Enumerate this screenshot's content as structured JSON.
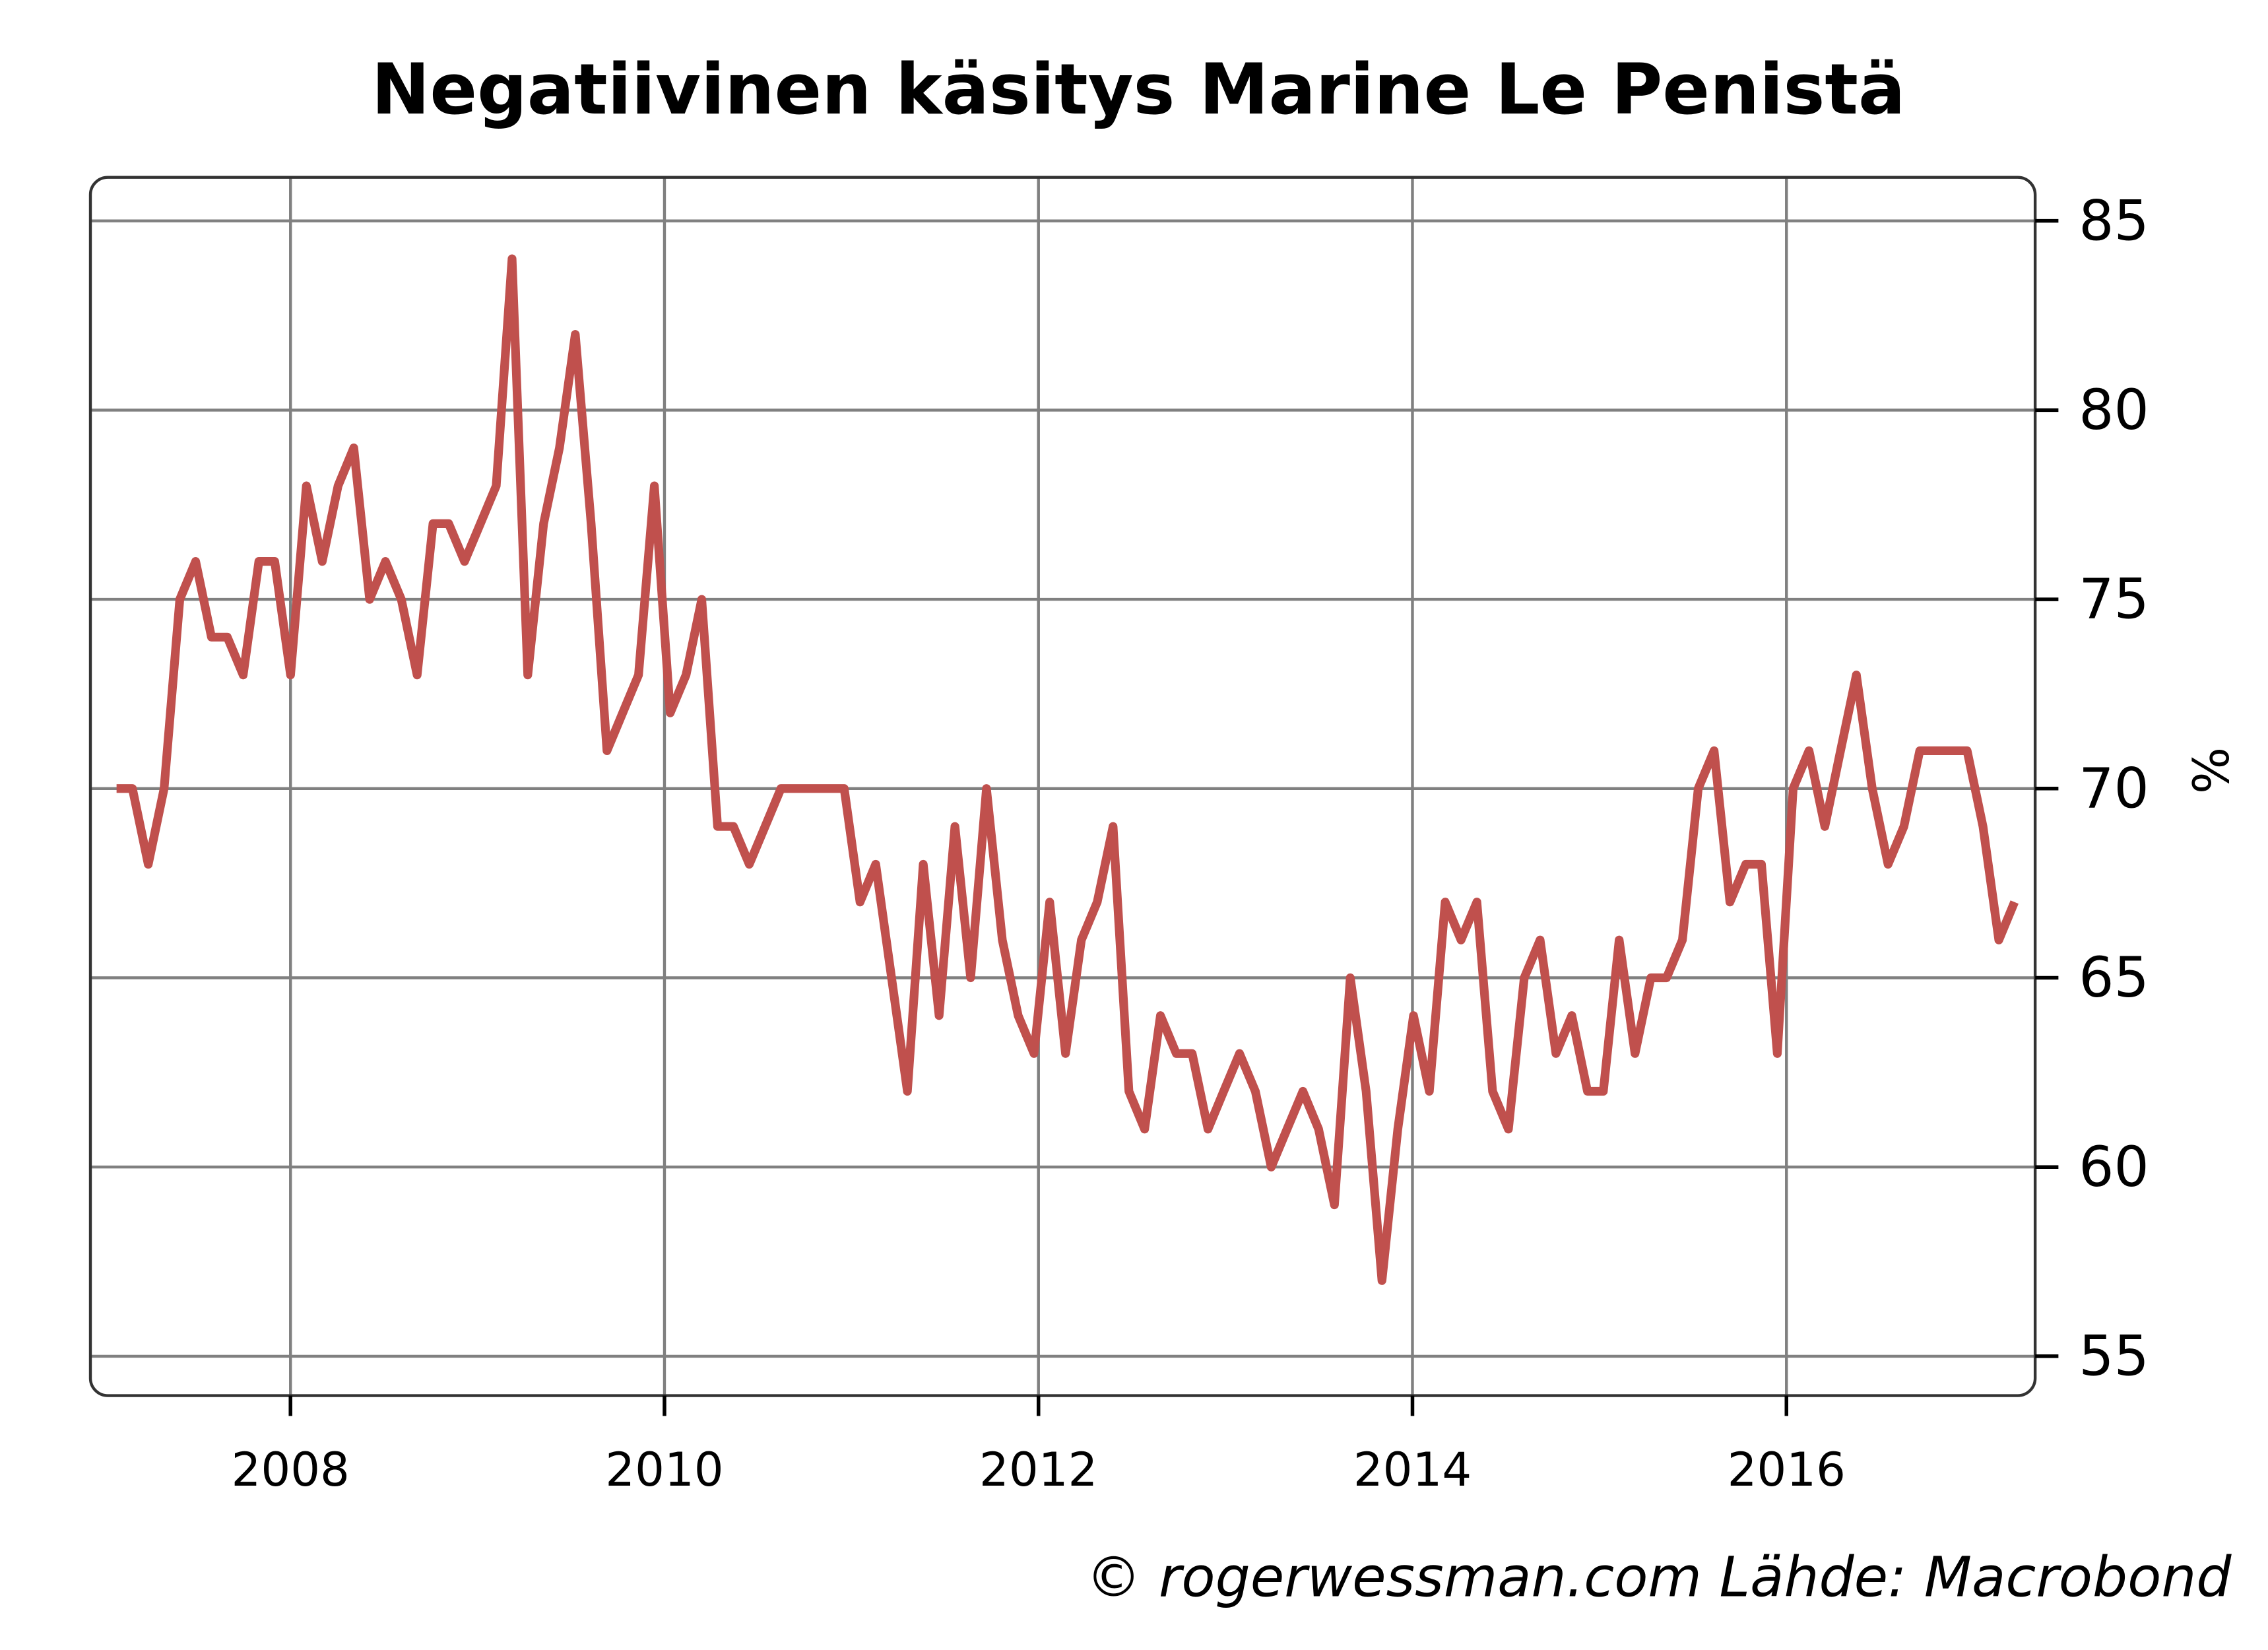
{
  "chart_data": {
    "type": "line",
    "title": "Negatiivinen käsitys Marine Le Penistä",
    "xlabel": "",
    "ylabel": "%",
    "xlim": [
      2006.93,
      2017.33
    ],
    "ylim": [
      53.96,
      86.15
    ],
    "x_ticks": [
      "2008",
      "2010",
      "2012",
      "2014",
      "2016"
    ],
    "x_tick_values": [
      2008,
      2010,
      2012,
      2014,
      2016
    ],
    "y_ticks": [
      "55",
      "60",
      "65",
      "70",
      "75",
      "80",
      "85"
    ],
    "y_tick_values": [
      55,
      60,
      65,
      70,
      75,
      80,
      85
    ],
    "y_axis_side": "right",
    "grid": true,
    "series": [
      {
        "name": "Negatiivinen käsitys",
        "color": "#c0504d",
        "frequency": "monthly",
        "x_start": 2007.07,
        "x_end": 2017.22,
        "values": [
          70,
          70,
          68,
          70,
          75,
          76,
          74,
          74,
          73,
          76,
          76,
          73,
          78,
          76,
          78,
          79,
          75,
          76,
          75,
          73,
          77,
          77,
          76,
          77,
          78,
          84,
          73,
          77,
          79,
          82,
          77,
          71,
          72,
          73,
          78,
          72,
          73,
          75,
          69,
          69,
          68,
          69,
          70,
          70,
          70,
          70,
          70,
          67,
          68,
          65,
          62,
          68,
          64,
          69,
          65,
          70,
          66,
          64,
          63,
          67,
          63,
          66,
          67,
          69,
          62,
          61,
          64,
          63,
          63,
          61,
          62,
          63,
          62,
          60,
          61,
          62,
          61,
          59,
          65,
          62,
          57,
          61,
          64,
          62,
          67,
          66,
          67,
          62,
          61,
          65,
          66,
          63,
          64,
          62,
          62,
          66,
          63,
          65,
          65,
          66,
          70,
          71,
          67,
          68,
          68,
          63,
          70,
          71,
          69,
          71,
          73,
          70,
          68,
          69,
          71,
          71,
          71,
          71,
          69,
          66,
          67
        ]
      }
    ],
    "credit": "© rogerwessman.com Lähde: Macrobond"
  }
}
